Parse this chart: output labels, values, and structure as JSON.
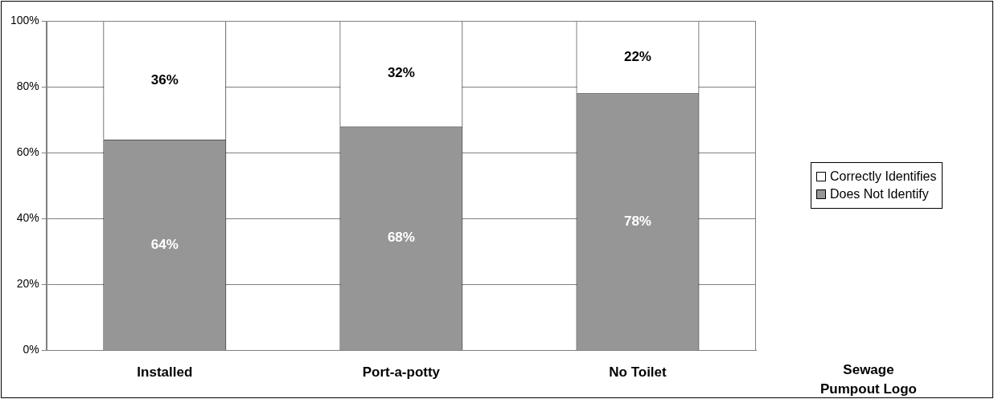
{
  "chart_data": {
    "type": "bar",
    "stacked": true,
    "categories": [
      "Installed",
      "Port-a-potty",
      "No Toilet"
    ],
    "series": [
      {
        "name": "Does Not Identify",
        "color": "#969696",
        "values": [
          64,
          68,
          78
        ],
        "value_labels": [
          "64%",
          "68%",
          "78%"
        ]
      },
      {
        "name": "Correctly Identifies",
        "color": "#ffffff",
        "values": [
          36,
          32,
          22
        ],
        "value_labels": [
          "36%",
          "32%",
          "22%"
        ]
      }
    ],
    "ylim": [
      0,
      100
    ],
    "yticks": [
      {
        "value": 0,
        "label": "0%"
      },
      {
        "value": 20,
        "label": "20%"
      },
      {
        "value": 40,
        "label": "40%"
      },
      {
        "value": 60,
        "label": "60%"
      },
      {
        "value": 80,
        "label": "80%"
      },
      {
        "value": 100,
        "label": "100%"
      }
    ],
    "grid": "y",
    "legend": "right",
    "annotations": [
      "Sewage Pumpout Logo"
    ]
  }
}
